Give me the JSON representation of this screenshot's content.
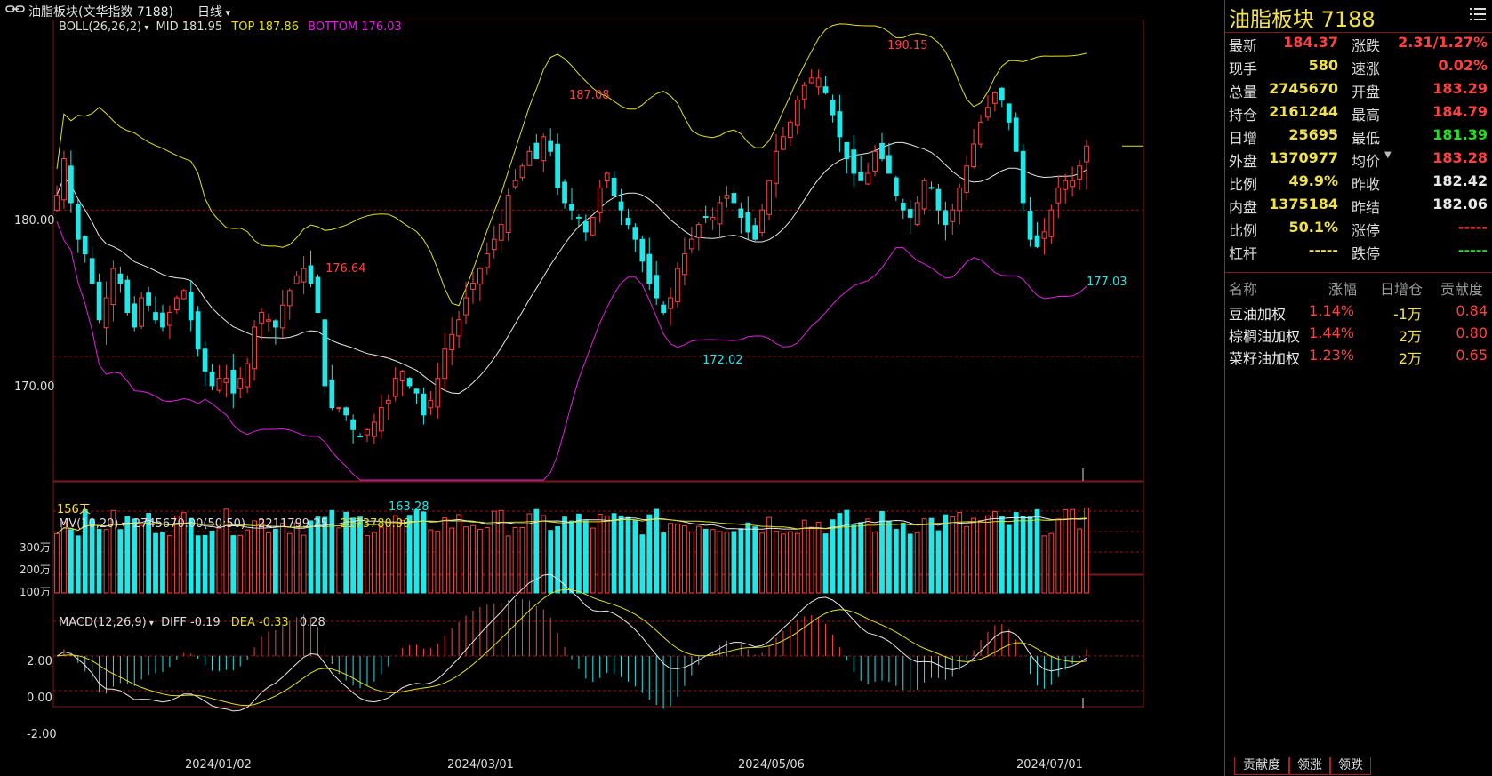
{
  "header": {
    "link_icon": "link-icon",
    "title": "油脂板块(文华指数 7188)",
    "period": "日线"
  },
  "boll": {
    "label": "BOLL(26,26,2)",
    "mid": "MID 181.95",
    "top": "TOP 187.86",
    "bottom": "BOTTOM 176.03"
  },
  "main_chart": {
    "y_ticks": [
      "180.00",
      "170.00"
    ],
    "annotations": [
      "176.64",
      "187.08",
      "190.15",
      "163.28",
      "172.02",
      "177.03"
    ],
    "days_label": "156天"
  },
  "mv": {
    "label": "MV(10,20)",
    "volume": "2745670.00(50:50)",
    "ma10": "2211799.25",
    "ma20": "2173780.00",
    "y_ticks": [
      "300万",
      "200万",
      "100万"
    ]
  },
  "macd": {
    "label": "MACD(12,26,9)",
    "diff": "DIFF -0.19",
    "dea": "DEA -0.33",
    "macd": "0.28",
    "y_ticks": [
      "2.00",
      "0.00",
      "-2.00"
    ]
  },
  "x_axis": [
    "2024/01/02",
    "2024/03/01",
    "2024/05/06",
    "2024/07/01"
  ],
  "chart_data": {
    "type": "candlestick",
    "title": "油脂板块(文华指数 7188)",
    "ylim_price": [
      161.5,
      193
    ],
    "closes": [
      181.0,
      183.5,
      180.5,
      178.0,
      177.0,
      175.0,
      172.5,
      174.0,
      176.0,
      175.0,
      173.0,
      172.0,
      174.0,
      173.5,
      172.5,
      172.0,
      173.0,
      174.0,
      174.5,
      172.5,
      170.5,
      169.0,
      168.0,
      168.5,
      168.5,
      167.5,
      168.5,
      169.5,
      172.0,
      173.0,
      172.5,
      172.0,
      173.5,
      174.5,
      175.5,
      176.0,
      175.0,
      173.0,
      168.0,
      166.5,
      166.5,
      166.0,
      165.0,
      164.5,
      165.0,
      165.5,
      166.5,
      167.0,
      168.5,
      169.0,
      168.0,
      167.5,
      166.0,
      167.0,
      168.5,
      170.5,
      171.5,
      172.5,
      174.0,
      175.0,
      176.0,
      177.0,
      178.0,
      179.0,
      181.0,
      182.0,
      183.0,
      184.0,
      183.5,
      185.0,
      184.0,
      181.5,
      180.5,
      180.0,
      179.5,
      178.5,
      179.5,
      181.5,
      182.5,
      181.0,
      180.0,
      179.0,
      178.0,
      176.5,
      175.0,
      174.0,
      173.0,
      174.0,
      176.0,
      177.0,
      178.0,
      179.0,
      179.5,
      179.5,
      180.5,
      181.0,
      180.5,
      179.5,
      178.5,
      178.0,
      180.0,
      182.0,
      184.0,
      185.0,
      186.0,
      187.5,
      188.5,
      189.0,
      189.0,
      188.0,
      186.5,
      185.0,
      183.5,
      182.5,
      182.0,
      182.5,
      184.0,
      183.5,
      182.5,
      181.0,
      180.0,
      179.5,
      180.5,
      182.0,
      181.5,
      180.0,
      179.0,
      180.0,
      181.5,
      183.0,
      184.5,
      186.0,
      187.0,
      188.0,
      187.5,
      186.0,
      184.0,
      180.5,
      178.0,
      177.5,
      178.5,
      180.0,
      181.5,
      182.0,
      182.0,
      183.0,
      184.37
    ],
    "boll_top_anchor": 187.86,
    "boll_mid_anchor": 181.95,
    "boll_bottom_anchor": 176.03,
    "volume_unit": "万",
    "volume_range": [
      0,
      320
    ],
    "macd_range": [
      -3,
      3.2
    ],
    "last_volume": 2745670
  },
  "quote": {
    "title": "油脂板块  7188",
    "left": [
      {
        "k": "最新",
        "v": "184.37",
        "c": "#ff4040"
      },
      {
        "k": "现手",
        "v": "580",
        "c": "#f2e24a"
      },
      {
        "k": "总量",
        "v": "2745670",
        "c": "#f2e24a"
      },
      {
        "k": "持仓",
        "v": "2161244",
        "c": "#f2e24a"
      },
      {
        "k": "日增",
        "v": "25695",
        "c": "#f2e24a"
      },
      {
        "k": "外盘",
        "v": "1370977",
        "c": "#f2e24a"
      },
      {
        "k": "比例",
        "v": "49.9%",
        "c": "#f2e24a"
      },
      {
        "k": "内盘",
        "v": "1375184",
        "c": "#f2e24a"
      },
      {
        "k": "比例",
        "v": "50.1%",
        "c": "#f2e24a"
      },
      {
        "k": "杠杆",
        "v": "-----",
        "c": "#f2e24a"
      }
    ],
    "right": [
      {
        "k": "涨跌",
        "v": "2.31/1.27%",
        "c": "#ff4040"
      },
      {
        "k": "速涨",
        "v": "0.02%",
        "c": "#ff4040"
      },
      {
        "k": "开盘",
        "v": "183.29",
        "c": "#ff4040"
      },
      {
        "k": "最高",
        "v": "184.79",
        "c": "#ff4040"
      },
      {
        "k": "最低",
        "v": "181.39",
        "c": "#20e020"
      },
      {
        "k": "均价",
        "v": "183.28",
        "c": "#ff4040"
      },
      {
        "k": "昨收",
        "v": "182.42",
        "c": "#e8e8e8"
      },
      {
        "k": "昨结",
        "v": "182.06",
        "c": "#e8e8e8"
      },
      {
        "k": "涨停",
        "v": "-----",
        "c": "#ff4040"
      },
      {
        "k": "跌停",
        "v": "-----",
        "c": "#20e020"
      }
    ]
  },
  "contrib": {
    "headers": [
      "名称",
      "涨幅",
      "日增仓",
      "贡献度"
    ],
    "rows": [
      {
        "name": "豆油加权",
        "chg": "1.14%",
        "oi": "-1万",
        "contrib": "0.84"
      },
      {
        "name": "棕榈油加权",
        "chg": "1.44%",
        "oi": "2万",
        "contrib": "0.80"
      },
      {
        "name": "菜籽油加权",
        "chg": "1.23%",
        "oi": "2万",
        "contrib": "0.65"
      }
    ]
  },
  "tabs": [
    "贡献度",
    "领涨",
    "领跌"
  ],
  "colors": {
    "up": "#ff4040",
    "down": "#20e8e8",
    "boll_top": "#e0e020",
    "boll_mid": "#e8e8e8",
    "boll_bottom": "#e020e0",
    "grid": "#7a1a1a",
    "text_yellow": "#f2e24a"
  }
}
